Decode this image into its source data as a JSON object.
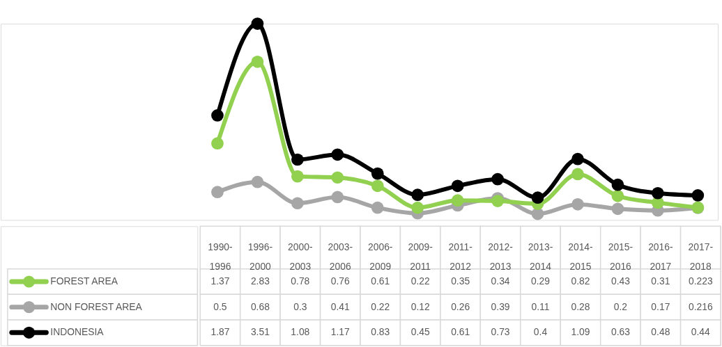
{
  "chart_data": {
    "type": "line",
    "categories": [
      "1990-1996",
      "1996-2000",
      "2000-2003",
      "2003-2006",
      "2006-2009",
      "2009-2011",
      "2011-2012",
      "2012-2013",
      "2013-2014",
      "2014-2015",
      "2015-2016",
      "2016-2017",
      "2017-2018"
    ],
    "series": [
      {
        "name": "FOREST AREA",
        "color": "#92d050",
        "values": [
          1.37,
          2.83,
          0.78,
          0.76,
          0.61,
          0.22,
          0.35,
          0.34,
          0.29,
          0.82,
          0.43,
          0.31,
          0.223
        ]
      },
      {
        "name": "NON FOREST AREA",
        "color": "#a6a6a6",
        "values": [
          0.5,
          0.68,
          0.3,
          0.41,
          0.22,
          0.12,
          0.26,
          0.39,
          0.11,
          0.28,
          0.2,
          0.17,
          0.216
        ]
      },
      {
        "name": "INDONESIA",
        "color": "#000000",
        "values": [
          1.87,
          3.51,
          1.08,
          1.17,
          0.83,
          0.45,
          0.61,
          0.73,
          0.4,
          1.09,
          0.63,
          0.48,
          0.44
        ]
      }
    ],
    "data_labels": true,
    "legend": "bottom left",
    "marker": "circle",
    "line_style": "solid",
    "grid": false
  }
}
